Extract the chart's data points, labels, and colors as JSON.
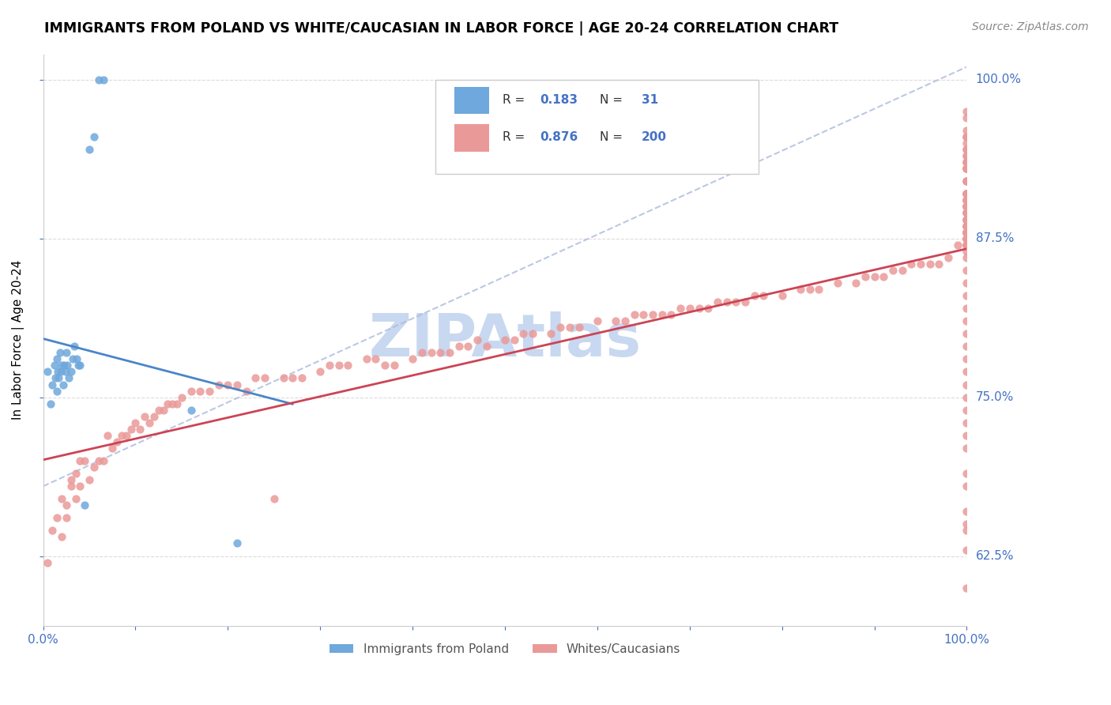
{
  "title": "IMMIGRANTS FROM POLAND VS WHITE/CAUCASIAN IN LABOR FORCE | AGE 20-24 CORRELATION CHART",
  "source": "Source: ZipAtlas.com",
  "ylabel": "In Labor Force | Age 20-24",
  "ytick_labels": [
    "62.5%",
    "75.0%",
    "87.5%",
    "100.0%"
  ],
  "ytick_values": [
    0.625,
    0.75,
    0.875,
    1.0
  ],
  "legend_label1": "Immigrants from Poland",
  "legend_label2": "Whites/Caucasians",
  "R1": "0.183",
  "N1": "31",
  "R2": "0.876",
  "N2": "200",
  "color_blue": "#6fa8dc",
  "color_pink": "#ea9999",
  "color_blue_line": "#4a86c8",
  "color_pink_line": "#cc4455",
  "color_text_blue": "#4472c4",
  "watermark_color": "#c8d8f0",
  "xlim": [
    0.0,
    1.0
  ],
  "ylim": [
    0.57,
    1.02
  ],
  "poland_x": [
    0.005,
    0.008,
    0.01,
    0.012,
    0.013,
    0.015,
    0.015,
    0.016,
    0.017,
    0.018,
    0.019,
    0.02,
    0.022,
    0.023,
    0.024,
    0.025,
    0.026,
    0.028,
    0.03,
    0.032,
    0.034,
    0.036,
    0.038,
    0.04,
    0.045,
    0.05,
    0.055,
    0.06,
    0.065,
    0.16,
    0.21
  ],
  "poland_y": [
    0.77,
    0.745,
    0.76,
    0.775,
    0.765,
    0.78,
    0.755,
    0.77,
    0.765,
    0.785,
    0.77,
    0.775,
    0.76,
    0.775,
    0.77,
    0.785,
    0.775,
    0.765,
    0.77,
    0.78,
    0.79,
    0.78,
    0.775,
    0.775,
    0.665,
    0.945,
    0.955,
    1.0,
    1.0,
    0.74,
    0.635
  ],
  "white_x": [
    0.005,
    0.01,
    0.015,
    0.02,
    0.02,
    0.025,
    0.025,
    0.03,
    0.03,
    0.035,
    0.035,
    0.04,
    0.04,
    0.045,
    0.05,
    0.055,
    0.06,
    0.065,
    0.07,
    0.075,
    0.08,
    0.085,
    0.09,
    0.095,
    0.1,
    0.105,
    0.11,
    0.115,
    0.12,
    0.125,
    0.13,
    0.135,
    0.14,
    0.145,
    0.15,
    0.16,
    0.17,
    0.18,
    0.19,
    0.2,
    0.21,
    0.22,
    0.23,
    0.24,
    0.25,
    0.26,
    0.27,
    0.28,
    0.3,
    0.31,
    0.32,
    0.33,
    0.35,
    0.36,
    0.37,
    0.38,
    0.4,
    0.41,
    0.42,
    0.43,
    0.44,
    0.45,
    0.46,
    0.47,
    0.48,
    0.5,
    0.51,
    0.52,
    0.53,
    0.55,
    0.56,
    0.57,
    0.58,
    0.6,
    0.62,
    0.63,
    0.64,
    0.65,
    0.66,
    0.67,
    0.68,
    0.69,
    0.7,
    0.71,
    0.72,
    0.73,
    0.74,
    0.75,
    0.76,
    0.77,
    0.78,
    0.8,
    0.82,
    0.83,
    0.84,
    0.86,
    0.88,
    0.89,
    0.9,
    0.91,
    0.92,
    0.93,
    0.94,
    0.95,
    0.96,
    0.97,
    0.98,
    0.99,
    1.0,
    1.0,
    1.0,
    1.0,
    1.0,
    1.0,
    1.0,
    1.0,
    1.0,
    1.0,
    1.0,
    1.0,
    1.0,
    1.0,
    1.0,
    1.0,
    1.0,
    1.0,
    1.0,
    1.0,
    1.0,
    1.0,
    1.0,
    1.0,
    1.0,
    1.0,
    1.0,
    1.0,
    1.0,
    1.0,
    1.0,
    1.0,
    1.0,
    1.0,
    1.0,
    1.0,
    1.0,
    1.0,
    1.0,
    1.0,
    1.0,
    1.0,
    1.0,
    1.0,
    1.0,
    1.0,
    1.0,
    1.0,
    1.0,
    1.0,
    1.0,
    1.0,
    1.0,
    1.0,
    1.0,
    1.0,
    1.0,
    1.0,
    1.0,
    1.0,
    1.0,
    1.0,
    1.0,
    1.0,
    1.0,
    1.0,
    1.0,
    1.0,
    1.0,
    1.0,
    1.0,
    1.0,
    1.0,
    1.0,
    1.0,
    1.0,
    1.0,
    1.0,
    1.0,
    1.0,
    1.0,
    1.0,
    1.0,
    1.0,
    1.0,
    1.0,
    1.0,
    1.0,
    1.0,
    1.0,
    1.0,
    1.0
  ],
  "white_y": [
    0.62,
    0.645,
    0.655,
    0.67,
    0.64,
    0.655,
    0.665,
    0.68,
    0.685,
    0.67,
    0.69,
    0.68,
    0.7,
    0.7,
    0.685,
    0.695,
    0.7,
    0.7,
    0.72,
    0.71,
    0.715,
    0.72,
    0.72,
    0.725,
    0.73,
    0.725,
    0.735,
    0.73,
    0.735,
    0.74,
    0.74,
    0.745,
    0.745,
    0.745,
    0.75,
    0.755,
    0.755,
    0.755,
    0.76,
    0.76,
    0.76,
    0.755,
    0.765,
    0.765,
    0.67,
    0.765,
    0.765,
    0.765,
    0.77,
    0.775,
    0.775,
    0.775,
    0.78,
    0.78,
    0.775,
    0.775,
    0.78,
    0.785,
    0.785,
    0.785,
    0.785,
    0.79,
    0.79,
    0.795,
    0.79,
    0.795,
    0.795,
    0.8,
    0.8,
    0.8,
    0.805,
    0.805,
    0.805,
    0.81,
    0.81,
    0.81,
    0.815,
    0.815,
    0.815,
    0.815,
    0.815,
    0.82,
    0.82,
    0.82,
    0.82,
    0.825,
    0.825,
    0.825,
    0.825,
    0.83,
    0.83,
    0.83,
    0.835,
    0.835,
    0.835,
    0.84,
    0.84,
    0.845,
    0.845,
    0.845,
    0.85,
    0.85,
    0.855,
    0.855,
    0.855,
    0.855,
    0.86,
    0.87,
    0.865,
    0.87,
    0.87,
    0.87,
    0.87,
    0.87,
    0.875,
    0.875,
    0.875,
    0.875,
    0.875,
    0.88,
    0.88,
    0.88,
    0.88,
    0.875,
    0.88,
    0.88,
    0.885,
    0.885,
    0.885,
    0.885,
    0.89,
    0.89,
    0.89,
    0.895,
    0.895,
    0.895,
    0.895,
    0.9,
    0.9,
    0.9,
    0.905,
    0.905,
    0.905,
    0.905,
    0.9,
    0.91,
    0.91,
    0.91,
    0.91,
    0.91,
    0.91,
    0.92,
    0.92,
    0.92,
    0.93,
    0.93,
    0.93,
    0.93,
    0.93,
    0.935,
    0.935,
    0.935,
    0.94,
    0.94,
    0.945,
    0.945,
    0.95,
    0.955,
    0.955,
    0.955,
    0.96,
    0.97,
    0.975,
    0.6,
    0.63,
    0.645,
    0.65,
    0.66,
    0.68,
    0.69,
    0.71,
    0.72,
    0.73,
    0.74,
    0.75,
    0.76,
    0.77,
    0.78,
    0.79,
    0.8,
    0.81,
    0.82,
    0.83,
    0.84,
    0.85,
    0.86,
    0.87,
    0.88,
    0.89,
    0.9
  ]
}
